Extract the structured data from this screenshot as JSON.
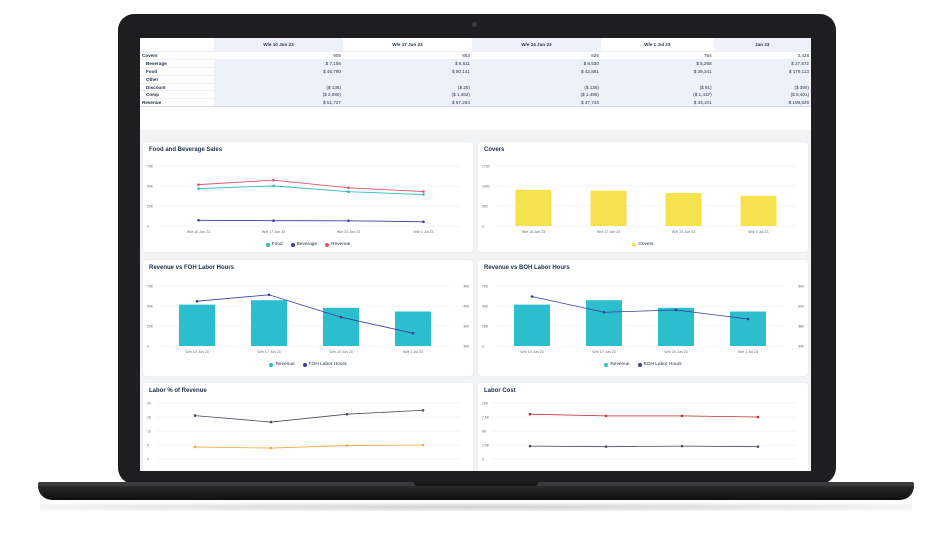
{
  "colors": {
    "food": "#2bbac6",
    "beverage": "#3b3aa3",
    "revenue": "#e0546a",
    "covers": "#f6e24f",
    "bar_teal": "#2dbecd",
    "labor_dark": "#4a4e58",
    "labor_orange": "#f0a93a",
    "cost_red": "#c0312b"
  },
  "table": {
    "headers": [
      "W/e 10 Jun 23",
      "W/e 17 Jun 23",
      "W/e 24 Jun 23",
      "W/e 1 Jul 23",
      "Jan 23"
    ],
    "rows": [
      {
        "label": "Covers",
        "indent": false,
        "shade": false,
        "values": [
          "905",
          "883",
          "826",
          "754",
          "3,428"
        ]
      },
      {
        "label": "Beverage",
        "indent": true,
        "shade": true,
        "values": [
          "$ 7,156",
          "$ 6,611",
          "$ 6,530",
          "$ 5,268",
          "$ 27,572"
        ]
      },
      {
        "label": "Food",
        "indent": true,
        "shade": true,
        "values": [
          "$ 46,780",
          "$ 50,141",
          "$ 42,861",
          "$ 39,341",
          "$ 179,113"
        ]
      },
      {
        "label": "Other",
        "indent": true,
        "shade": true,
        "values": [
          "",
          "",
          "",
          "",
          ""
        ]
      },
      {
        "label": "Discount",
        "indent": true,
        "shade": true,
        "values": [
          "($ 136)",
          "($ 25)",
          "($ 136)",
          "($ 91)",
          "($ 390)"
        ]
      },
      {
        "label": "Comp",
        "indent": true,
        "shade": true,
        "values": [
          "($ 2,080)",
          "($ 1,462)",
          "($ 1,496)",
          "($ 1,417)",
          "($ 5,401)"
        ]
      },
      {
        "label": "Revenue",
        "indent": false,
        "shade": true,
        "values": [
          "$ 51,727",
          "$ 57,254",
          "$ 47,743",
          "$ 43,101",
          "$ 199,826"
        ]
      }
    ]
  },
  "chart_data": [
    {
      "type": "line",
      "title": "Food and Beverage Sales",
      "categories": [
        "W/e 10 Jun 23",
        "W/e 17 Jun 23",
        "W/e 24 Jun 23",
        "W/e 1 Jul 23"
      ],
      "yticks": [
        "75K",
        "50K",
        "25K",
        "0"
      ],
      "ylim": [
        0,
        75000
      ],
      "series": [
        {
          "name": "Food",
          "values": [
            46780,
            50141,
            42861,
            39341
          ]
        },
        {
          "name": "Beverage",
          "values": [
            7156,
            6611,
            6530,
            5268
          ]
        },
        {
          "name": "Revenue",
          "values": [
            51727,
            57254,
            47743,
            43101
          ]
        }
      ],
      "legend": "bottom"
    },
    {
      "type": "bar",
      "title": "Covers",
      "categories": [
        "W/e 10 Jun 23",
        "W/e 17 Jun 23",
        "W/e 24 Jun 23",
        "W/e 1 Jul 23"
      ],
      "yticks": [
        "1750",
        "1000",
        "500",
        "0"
      ],
      "ylim": [
        0,
        1500
      ],
      "series": [
        {
          "name": "Covers",
          "values": [
            905,
            883,
            826,
            754
          ]
        }
      ],
      "legend": "bottom"
    },
    {
      "type": "bar",
      "title": "Revenue vs FOH Labor Hours",
      "categories": [
        "W/e 10 Jun 23",
        "W/e 17 Jun 23",
        "W/e 24 Jun 23",
        "W/e 1 Jul 23"
      ],
      "yticks": [
        "75K",
        "50K",
        "25K",
        "0"
      ],
      "ylim": [
        0,
        75000
      ],
      "y2ticks": [
        "400",
        "400",
        "300",
        "300"
      ],
      "y2lim": [
        270,
        420
      ],
      "series": [
        {
          "name": "Revenue",
          "values": [
            51727,
            57254,
            47743,
            43101
          ]
        },
        {
          "name": "FOH Labor Hours",
          "values": [
            382,
            398,
            342,
            302
          ]
        }
      ],
      "legend": "bottom"
    },
    {
      "type": "bar",
      "title": "Revenue vs BOH Labor Hours",
      "categories": [
        "W/e 10 Jun 23",
        "W/e 17 Jun 23",
        "W/e 24 Jun 23",
        "W/e 1 Jul 23"
      ],
      "yticks": [
        "75K",
        "50K",
        "25K",
        "0"
      ],
      "ylim": [
        0,
        75000
      ],
      "y2ticks": [
        "600",
        "600",
        "580",
        "540"
      ],
      "y2lim": [
        530,
        610
      ],
      "series": [
        {
          "name": "Revenue",
          "values": [
            51727,
            57254,
            47743,
            43101
          ]
        },
        {
          "name": "BOH Labor Hours",
          "values": [
            596,
            575,
            578,
            566
          ]
        }
      ],
      "legend": "bottom"
    },
    {
      "type": "line",
      "title": "Labor % of Revenue",
      "yticks": [
        "20",
        "15",
        "10",
        "5",
        "0"
      ],
      "ylim": [
        0,
        20
      ],
      "series": [
        {
          "values": [
            15.5,
            13.2,
            16.0,
            17.4
          ]
        },
        {
          "values": [
            4.3,
            3.9,
            4.8,
            5.0
          ]
        }
      ]
    },
    {
      "type": "line",
      "title": "Labor Cost",
      "yticks": [
        "10K",
        "7.5K",
        "5K",
        "2.5K",
        "0"
      ],
      "ylim": [
        0,
        10000
      ],
      "series": [
        {
          "values": [
            8000,
            7700,
            7700,
            7500
          ]
        },
        {
          "values": [
            2300,
            2200,
            2300,
            2200
          ]
        }
      ]
    }
  ]
}
